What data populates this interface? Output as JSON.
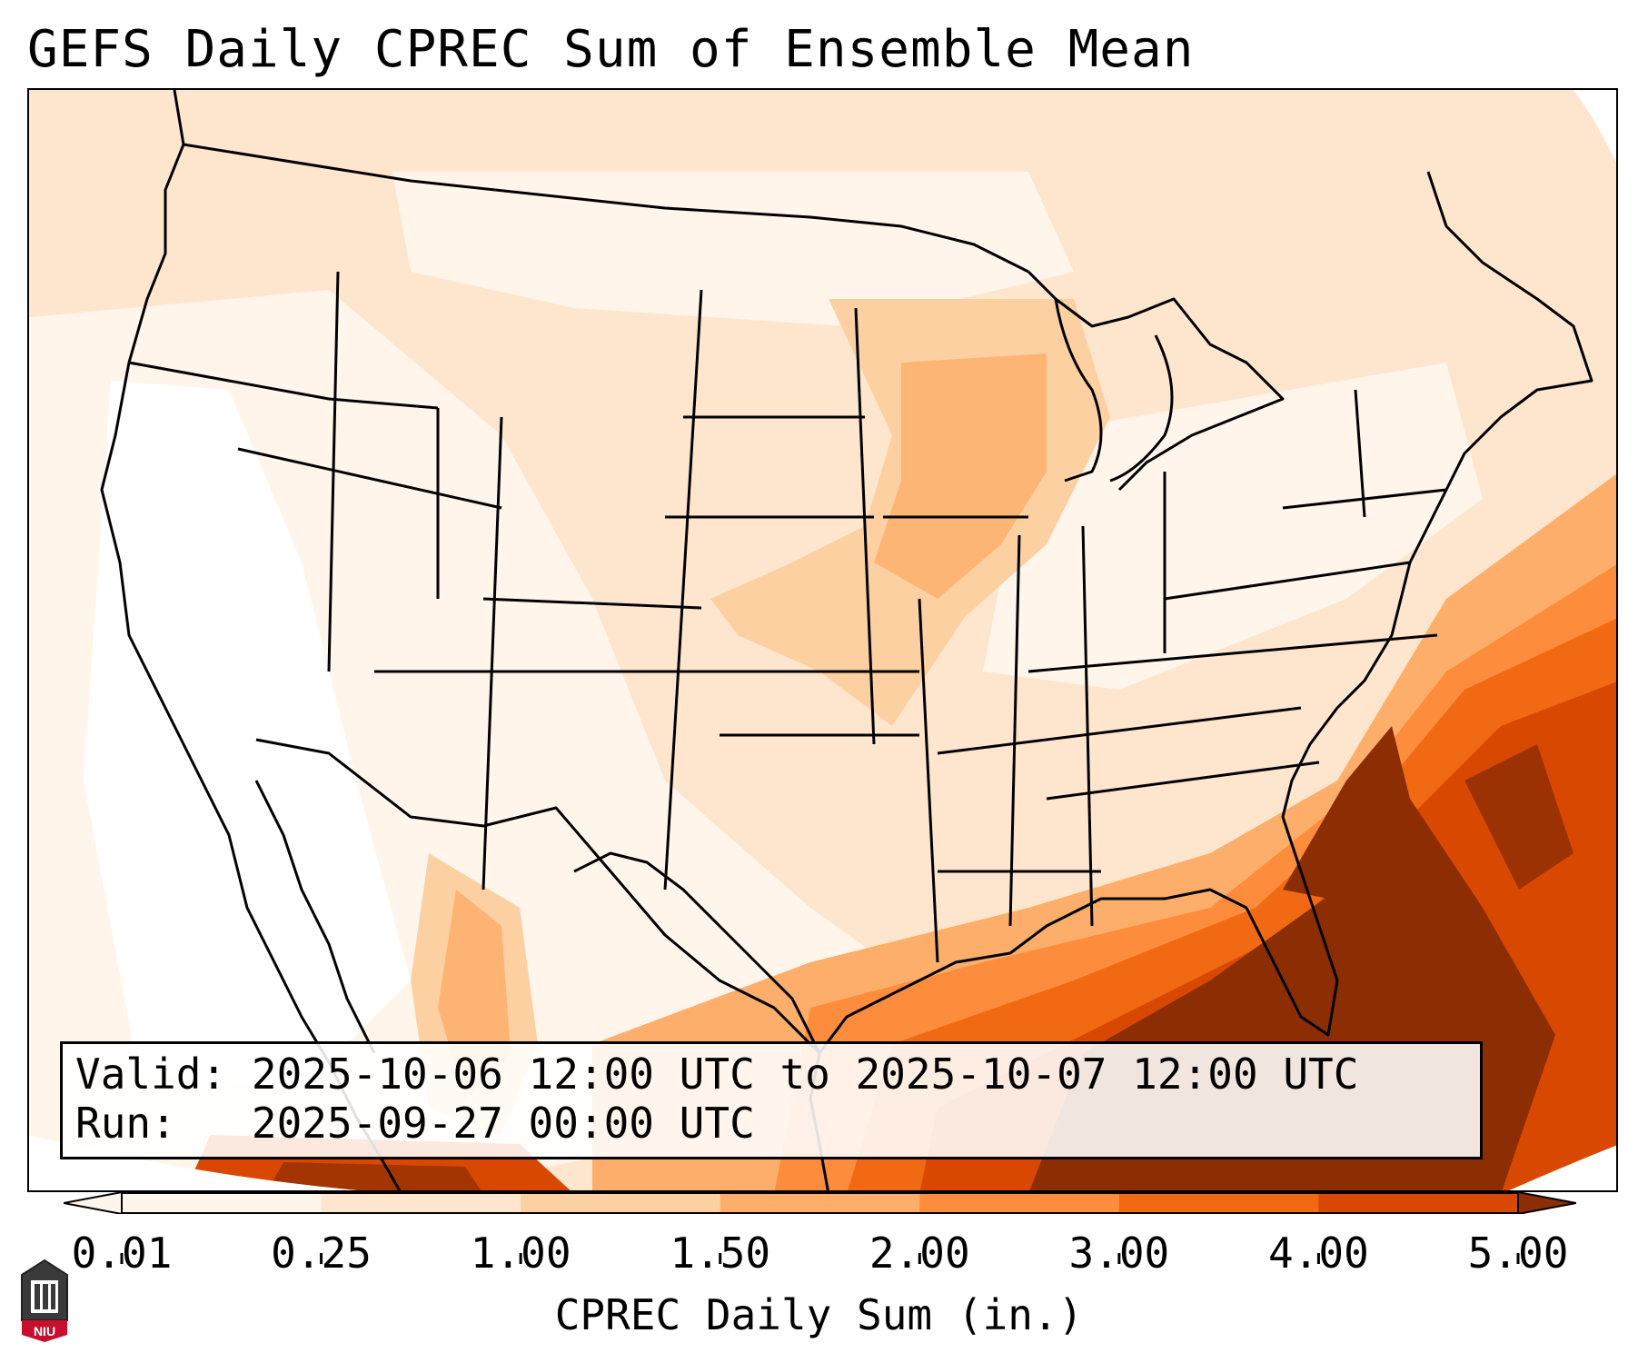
{
  "title": "GEFS Daily CPREC Sum of Ensemble Mean",
  "info": {
    "valid_label": "Valid:",
    "valid_value": "2025-10-06 12:00 UTC to 2025-10-07 12:00 UTC",
    "run_label": "Run:",
    "run_value": "2025-09-27 00:00 UTC"
  },
  "colorbar": {
    "label": "CPREC Daily Sum (in.)",
    "ticks": [
      "0.01",
      "0.25",
      "1.00",
      "1.50",
      "2.00",
      "3.00",
      "4.00",
      "5.00"
    ],
    "colors": [
      "#fff5eb",
      "#fee6ce",
      "#fdd0a2",
      "#fdae6b",
      "#fd8d3c",
      "#f16913",
      "#d94801",
      "#8c2d04"
    ],
    "extend": "both"
  },
  "logo": {
    "text": "NIU",
    "color": "#c8102e"
  }
}
